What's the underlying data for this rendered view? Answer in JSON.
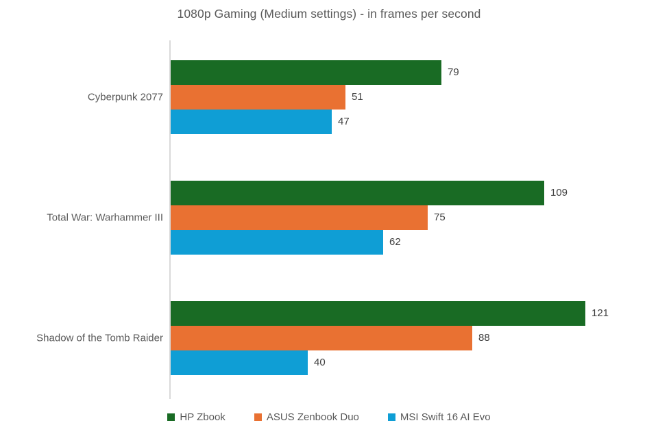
{
  "chart_data": {
    "type": "bar",
    "orientation": "horizontal",
    "title": "1080p Gaming (Medium settings) - in frames per second",
    "categories": [
      "Cyberpunk 2077",
      "Total War: Warhammer III",
      "Shadow of the Tomb Raider"
    ],
    "series": [
      {
        "name": "HP Zbook",
        "color": "#196B24",
        "values": [
          79,
          109,
          121
        ]
      },
      {
        "name": "ASUS Zenbook Duo",
        "color": "#E97132",
        "values": [
          51,
          75,
          88
        ]
      },
      {
        "name": "MSI Swift 16 AI Evo",
        "color": "#0F9ED5",
        "values": [
          47,
          62,
          40
        ]
      }
    ],
    "xlim": [
      0,
      140
    ],
    "grid": false,
    "legend_position": "bottom",
    "value_labels": true,
    "colors": {
      "title_text": "#595959",
      "category_text": "#595959",
      "value_text": "#404040",
      "axis_line": "#d9d9d9",
      "background": "#ffffff"
    }
  }
}
